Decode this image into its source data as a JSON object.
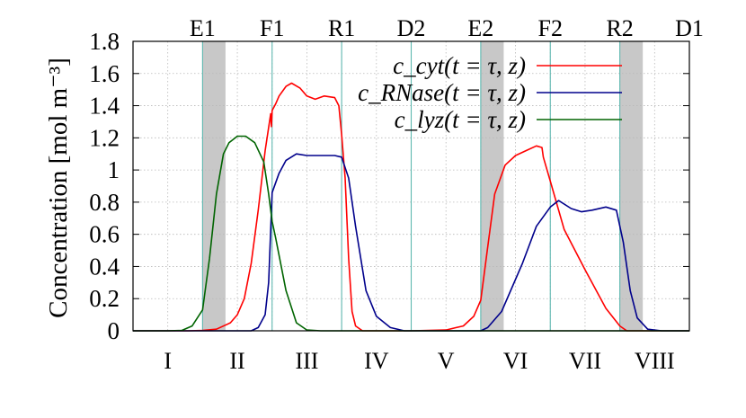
{
  "chart_data": {
    "type": "line",
    "ylabel": "Concentration [mol m⁻³]",
    "ylim": [
      0,
      1.8
    ],
    "xlim": [
      0,
      8
    ],
    "yticks": [
      0,
      0.2,
      0.4,
      0.6,
      0.8,
      1,
      1.2,
      1.4,
      1.6,
      1.8
    ],
    "ytick_labels": [
      "0",
      "0.2",
      "0.4",
      "0.6",
      "0.8",
      "1",
      "1.2",
      "1.4",
      "1.6",
      "1.8"
    ],
    "grid": true,
    "legend_position": "top-right",
    "regions": [
      "I",
      "II",
      "III",
      "IV",
      "V",
      "VI",
      "VII",
      "VIII"
    ],
    "top_labels": [
      {
        "label": "E1",
        "x": 1.0
      },
      {
        "label": "F1",
        "x": 2.0
      },
      {
        "label": "R1",
        "x": 3.0
      },
      {
        "label": "D2",
        "x": 4.0
      },
      {
        "label": "E2",
        "x": 5.0
      },
      {
        "label": "F2",
        "x": 6.0
      },
      {
        "label": "R2",
        "x": 7.0
      },
      {
        "label": "D1",
        "x": 8.0
      }
    ],
    "shaded_bands": [
      [
        1.0,
        1.33
      ],
      [
        5.0,
        5.33
      ],
      [
        7.0,
        7.33
      ]
    ],
    "series": [
      {
        "name": "c_cyt(t = τ, z)",
        "color": "#ff0000",
        "points": [
          [
            0,
            0
          ],
          [
            0.8,
            0
          ],
          [
            1.0,
            0.003
          ],
          [
            1.2,
            0.01
          ],
          [
            1.4,
            0.05
          ],
          [
            1.5,
            0.1
          ],
          [
            1.6,
            0.2
          ],
          [
            1.7,
            0.42
          ],
          [
            1.8,
            0.75
          ],
          [
            1.9,
            1.12
          ],
          [
            1.98,
            1.35
          ],
          [
            1.99,
            1.27
          ],
          [
            2.0,
            1.37
          ],
          [
            2.05,
            1.41
          ],
          [
            2.1,
            1.46
          ],
          [
            2.2,
            1.52
          ],
          [
            2.28,
            1.54
          ],
          [
            2.4,
            1.51
          ],
          [
            2.5,
            1.46
          ],
          [
            2.62,
            1.44
          ],
          [
            2.75,
            1.46
          ],
          [
            2.9,
            1.45
          ],
          [
            2.96,
            1.4
          ],
          [
            3.0,
            1.22
          ],
          [
            3.05,
            0.95
          ],
          [
            3.1,
            0.45
          ],
          [
            3.15,
            0.12
          ],
          [
            3.2,
            0.03
          ],
          [
            3.3,
            0.0
          ],
          [
            4.0,
            0.0
          ],
          [
            4.5,
            0.005
          ],
          [
            4.75,
            0.03
          ],
          [
            4.9,
            0.09
          ],
          [
            5.0,
            0.19
          ],
          [
            5.1,
            0.52
          ],
          [
            5.2,
            0.85
          ],
          [
            5.35,
            1.03
          ],
          [
            5.5,
            1.09
          ],
          [
            5.65,
            1.12
          ],
          [
            5.8,
            1.15
          ],
          [
            5.88,
            1.14
          ],
          [
            5.9,
            1.08
          ],
          [
            6.0,
            0.93
          ],
          [
            6.2,
            0.63
          ],
          [
            6.5,
            0.38
          ],
          [
            6.8,
            0.14
          ],
          [
            7.0,
            0.03
          ],
          [
            7.1,
            0.0
          ],
          [
            8.0,
            0.0
          ]
        ]
      },
      {
        "name": "c_RNase(t = τ, z)",
        "color": "#00008b",
        "points": [
          [
            0,
            0
          ],
          [
            1.7,
            0
          ],
          [
            1.8,
            0.02
          ],
          [
            1.9,
            0.1
          ],
          [
            1.95,
            0.3
          ],
          [
            2.0,
            0.86
          ],
          [
            2.1,
            0.98
          ],
          [
            2.2,
            1.06
          ],
          [
            2.35,
            1.1
          ],
          [
            2.5,
            1.09
          ],
          [
            2.7,
            1.09
          ],
          [
            2.9,
            1.09
          ],
          [
            3.0,
            1.08
          ],
          [
            3.1,
            0.95
          ],
          [
            3.2,
            0.65
          ],
          [
            3.35,
            0.25
          ],
          [
            3.5,
            0.09
          ],
          [
            3.7,
            0.02
          ],
          [
            3.9,
            0.0
          ],
          [
            5.0,
            0.0
          ],
          [
            5.1,
            0.02
          ],
          [
            5.3,
            0.12
          ],
          [
            5.6,
            0.42
          ],
          [
            5.8,
            0.65
          ],
          [
            6.0,
            0.77
          ],
          [
            6.12,
            0.81
          ],
          [
            6.3,
            0.76
          ],
          [
            6.45,
            0.74
          ],
          [
            6.6,
            0.75
          ],
          [
            6.8,
            0.77
          ],
          [
            6.95,
            0.75
          ],
          [
            7.05,
            0.55
          ],
          [
            7.15,
            0.25
          ],
          [
            7.25,
            0.08
          ],
          [
            7.4,
            0.01
          ],
          [
            7.6,
            0.0
          ],
          [
            8.0,
            0.0
          ]
        ]
      },
      {
        "name": "c_lyz(t = τ, z)",
        "color": "#006400",
        "points": [
          [
            0,
            0
          ],
          [
            0.5,
            0
          ],
          [
            0.7,
            0.002
          ],
          [
            0.85,
            0.03
          ],
          [
            1.0,
            0.13
          ],
          [
            1.1,
            0.45
          ],
          [
            1.2,
            0.85
          ],
          [
            1.3,
            1.1
          ],
          [
            1.38,
            1.17
          ],
          [
            1.5,
            1.21
          ],
          [
            1.62,
            1.21
          ],
          [
            1.75,
            1.17
          ],
          [
            1.88,
            1.05
          ],
          [
            1.95,
            0.85
          ],
          [
            2.0,
            0.68
          ],
          [
            2.05,
            0.58
          ],
          [
            2.2,
            0.25
          ],
          [
            2.35,
            0.05
          ],
          [
            2.5,
            0.005
          ],
          [
            2.7,
            0.0
          ],
          [
            8.0,
            0.0
          ]
        ]
      }
    ]
  }
}
